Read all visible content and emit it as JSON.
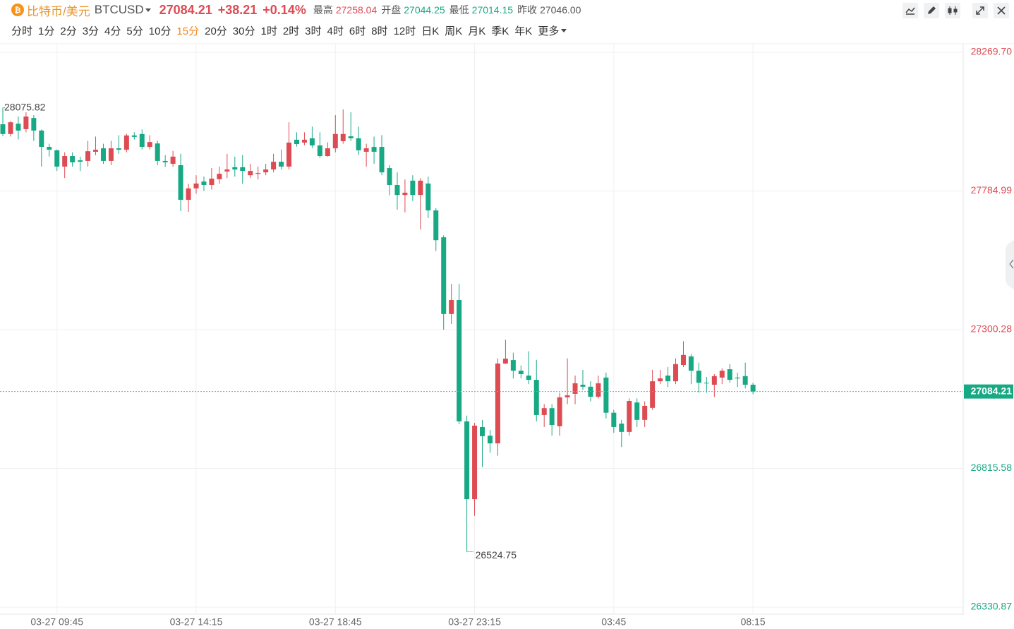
{
  "header": {
    "title": "比特币/美元",
    "symbol": "BTCUSD",
    "price": "27084.21",
    "change": "+38.21",
    "change_pct": "+0.14%",
    "stats": [
      {
        "label": "最高",
        "value": "27258.04"
      },
      {
        "label": "开盘",
        "value": "27044.25"
      },
      {
        "label": "最低",
        "value": "27014.15"
      },
      {
        "label": "昨收",
        "value": "27046.00"
      }
    ]
  },
  "timeframes": [
    "分时",
    "1分",
    "2分",
    "3分",
    "4分",
    "5分",
    "10分",
    "15分",
    "20分",
    "30分",
    "1时",
    "2时",
    "3时",
    "4时",
    "6时",
    "8时",
    "12时",
    "日K",
    "周K",
    "月K",
    "季K",
    "年K",
    "更多"
  ],
  "active_timeframe": 7,
  "chart_data": {
    "type": "candlestick",
    "up_color": "#dd4b53",
    "down_color": "#17a884",
    "categories": [
      null,
      null,
      null,
      null,
      null,
      null,
      null,
      "03-27 09:45",
      null,
      null,
      null,
      null,
      null,
      null,
      null,
      null,
      null,
      null,
      null,
      null,
      null,
      null,
      null,
      null,
      null,
      "03-27 14:15",
      null,
      null,
      null,
      null,
      null,
      null,
      null,
      null,
      null,
      null,
      null,
      null,
      null,
      null,
      null,
      null,
      null,
      "03-27 18:45",
      null,
      null,
      null,
      null,
      null,
      null,
      null,
      null,
      null,
      null,
      null,
      null,
      null,
      null,
      null,
      null,
      null,
      "03-27 23:15",
      null,
      null,
      null,
      null,
      null,
      null,
      null,
      null,
      null,
      null,
      null,
      null,
      null,
      null,
      null,
      null,
      null,
      "03:45",
      null,
      null,
      null,
      null,
      null,
      null,
      null,
      null,
      null,
      null,
      null,
      null,
      null,
      null,
      null,
      null,
      null,
      "08:15"
    ],
    "open": [
      28018,
      27984,
      28020,
      28001,
      28040,
      27996,
      27939,
      27927,
      27870,
      27907,
      27892,
      27890,
      27922,
      27934,
      27890,
      27934,
      27929,
      27979,
      27984,
      27939,
      27951,
      27890,
      27880,
      27875,
      27754,
      27794,
      27818,
      27806,
      27826,
      27853,
      27868,
      27868,
      27840,
      27845,
      27850,
      27860,
      27887,
      27870,
      27964,
      27954,
      27969,
      27944,
      27907,
      27934,
      27959,
      27976,
      27969,
      27922,
      27939,
      27939,
      27865,
      27806,
      27771,
      27821,
      27771,
      27811,
      27717,
      27623,
      27355,
      27404,
      26980,
      26708,
      26960,
      26930,
      26903,
      27182,
      27194,
      27157,
      27140,
      27125,
      27002,
      27026,
      26963,
      27064,
      27076,
      27108,
      27101,
      27066,
      27133,
      27010,
      26972,
      26943,
      27046,
      26985,
      27027,
      27120,
      27140,
      27120,
      27177,
      27207,
      27157,
      27115,
      27108,
      27133,
      27162,
      27133,
      27138,
      27108
    ],
    "high": [
      28075.82,
      28030,
      28045,
      28060,
      28050,
      28000,
      27950,
      27930,
      27920,
      27920,
      27905,
      27960,
      27975,
      27950,
      27960,
      27980,
      27985,
      27990,
      28000,
      27980,
      27960,
      27910,
      27925,
      27915,
      27810,
      27840,
      27835,
      27865,
      27870,
      27915,
      27905,
      27910,
      27880,
      27870,
      27880,
      27915,
      27930,
      28025,
      27990,
      27990,
      28010,
      27990,
      27955,
      28050,
      28070,
      28060,
      28010,
      27950,
      27975,
      27980,
      27875,
      27850,
      27825,
      27840,
      27830,
      27835,
      27725,
      27630,
      27460,
      27460,
      27000,
      26975,
      26985,
      26950,
      27200,
      27265,
      27220,
      27175,
      27225,
      27195,
      27040,
      27040,
      27080,
      27200,
      27140,
      27160,
      27120,
      27140,
      27150,
      27020,
      26985,
      27060,
      27060,
      27050,
      27160,
      27160,
      27170,
      27200,
      27260,
      27215,
      27185,
      27135,
      27145,
      27165,
      27180,
      27150,
      27185,
      27115
    ],
    "low": [
      27977,
      27975,
      27965,
      27990,
      27960,
      27870,
      27905,
      27855,
      27830,
      27870,
      27855,
      27870,
      27910,
      27880,
      27875,
      27915,
      27920,
      27965,
      27930,
      27930,
      27875,
      27870,
      27870,
      27715,
      27712,
      27775,
      27785,
      27790,
      27810,
      27830,
      27835,
      27810,
      27830,
      27825,
      27840,
      27850,
      27860,
      27860,
      27940,
      27945,
      27935,
      27900,
      27905,
      27920,
      27950,
      27960,
      27910,
      27870,
      27880,
      27840,
      27770,
      27720,
      27710,
      27750,
      27650,
      27690,
      27575,
      27300,
      27320,
      26970,
      26524.75,
      26650,
      26820,
      26870,
      26860,
      27180,
      27130,
      27130,
      27110,
      26980,
      26960,
      26930,
      26930,
      27040,
      27040,
      27090,
      27050,
      27060,
      26990,
      26940,
      26890,
      26930,
      26960,
      26960,
      27020,
      27110,
      27100,
      27110,
      27170,
      27110,
      27080,
      27080,
      27065,
      27110,
      27115,
      27100,
      27095,
      27075
    ],
    "close": [
      27984,
      28025,
      27996,
      28045,
      27996,
      27939,
      27929,
      27870,
      27907,
      27885,
      27887,
      27924,
      27929,
      27890,
      27934,
      27929,
      27979,
      27974,
      27939,
      27956,
      27890,
      27885,
      27905,
      27754,
      27794,
      27811,
      27806,
      27828,
      27845,
      27860,
      27860,
      27855,
      27855,
      27848,
      27860,
      27887,
      27870,
      27954,
      27949,
      27964,
      27944,
      27907,
      27934,
      27984,
      27984,
      27969,
      27927,
      27934,
      27922,
      27850,
      27806,
      27771,
      27779,
      27771,
      27821,
      27717,
      27613,
      27355,
      27404,
      26980,
      26708,
      26965,
      26928,
      26903,
      27182,
      27199,
      27157,
      27145,
      27125,
      27002,
      27026,
      26967,
      27064,
      27071,
      27113,
      27101,
      27066,
      27113,
      27010,
      26960,
      26943,
      27051,
      26985,
      27034,
      27120,
      27130,
      27120,
      27180,
      27212,
      27157,
      27115,
      27113,
      27138,
      27157,
      27125,
      27130,
      27108,
      27084.21
    ],
    "ylim": [
      26330.87,
      28269.7
    ],
    "yticks": [
      {
        "value": 26330.87,
        "label": "26330.87"
      },
      {
        "value": 26815.58,
        "label": "26815.58"
      },
      {
        "value": 27300.28,
        "label": "27300.28"
      },
      {
        "value": 27784.99,
        "label": "27784.99"
      },
      {
        "value": 28269.7,
        "label": "28269.70"
      }
    ],
    "grid": true
  }
}
